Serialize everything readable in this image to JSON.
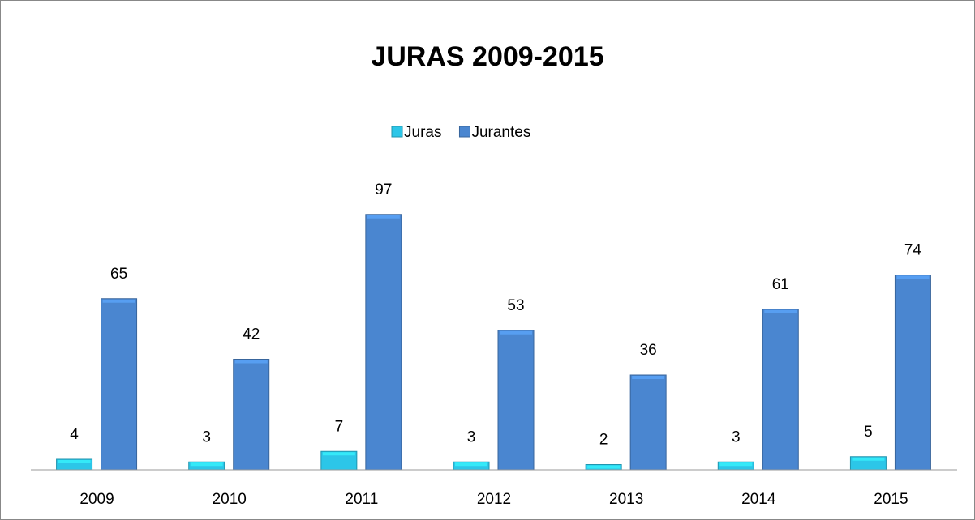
{
  "chart_data": {
    "type": "bar",
    "title": "JURAS 2009-2015",
    "categories": [
      "2009",
      "2010",
      "2011",
      "2012",
      "2013",
      "2014",
      "2015"
    ],
    "series": [
      {
        "name": "Juras",
        "color": "#2cc6e8",
        "values": [
          4,
          3,
          7,
          3,
          2,
          3,
          5
        ]
      },
      {
        "name": "Jurantes",
        "color": "#4a86d0",
        "values": [
          65,
          42,
          97,
          53,
          36,
          61,
          74
        ]
      }
    ],
    "legend": "top"
  }
}
